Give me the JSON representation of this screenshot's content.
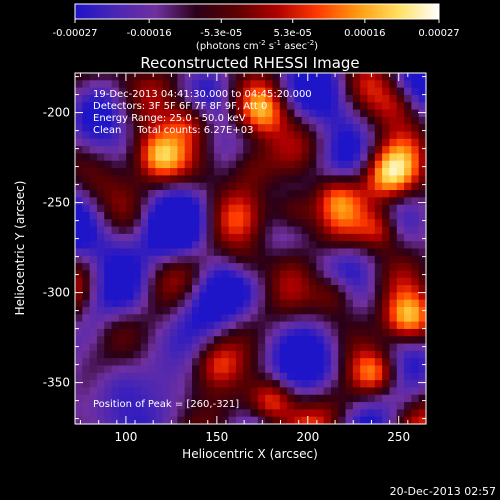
{
  "colorbar": {
    "tick_labels": [
      "-0.00027",
      "-0.00016",
      "-5.3e-05",
      "5.3e-05",
      "0.00016",
      "0.00027"
    ],
    "tick_values": [
      -0.00027,
      -0.00016,
      -5.3e-05,
      5.3e-05,
      0.00016,
      0.00027
    ],
    "range": [
      -0.00027,
      0.00027
    ],
    "unit_label_parts": [
      "(photons cm",
      "-2",
      " s",
      "-1",
      " asec",
      "-2",
      ")"
    ],
    "colors": [
      "#1e14c8",
      "#4a26b4",
      "#7030a0",
      "#2a0018",
      "#5c0000",
      "#b00000",
      "#ff3a00",
      "#ff9a10",
      "#ffe060",
      "#ffffff"
    ]
  },
  "chart_data": {
    "type": "heatmap",
    "title": "Reconstructed RHESSI Image",
    "xlabel": "Heliocentric X (arcsec)",
    "ylabel": "Heliocentric Y (arcsec)",
    "xlim": [
      72,
      265
    ],
    "ylim": [
      -373,
      -178
    ],
    "xticks": [
      100,
      150,
      200,
      250
    ],
    "yticks": [
      -200,
      -250,
      -300,
      -350
    ],
    "xtick_labels": [
      "100",
      "150",
      "200",
      "250"
    ],
    "ytick_labels": [
      "-200",
      "-250",
      "-300",
      "-350"
    ],
    "peak_position": [
      260,
      -321
    ],
    "info_lines": [
      "19-Dec-2013 04:41:30.000 to 04:45:20.000",
      "Detectors: 3F 5F 6F 7F 8F 9F, Att 0",
      "Energy Range: 25.0 - 50.0 keV",
      "Clean     Total counts: 6.27E+03"
    ],
    "annotation": "Position of Peak = [260,-321]",
    "bright_sources": [
      {
        "x": 118,
        "y": -224,
        "intensity": 0.9,
        "sigma": 10
      },
      {
        "x": 135,
        "y": -205,
        "intensity": 0.7,
        "sigma": 9
      },
      {
        "x": 168,
        "y": -230,
        "intensity": 0.6,
        "sigma": 10
      },
      {
        "x": 192,
        "y": -255,
        "intensity": 0.75,
        "sigma": 9
      },
      {
        "x": 215,
        "y": -245,
        "intensity": 0.55,
        "sigma": 9
      },
      {
        "x": 245,
        "y": -235,
        "intensity": 1.0,
        "sigma": 11
      },
      {
        "x": 240,
        "y": -265,
        "intensity": 0.6,
        "sigma": 8
      },
      {
        "x": 255,
        "y": -315,
        "intensity": 1.0,
        "sigma": 10
      },
      {
        "x": 237,
        "y": -345,
        "intensity": 0.7,
        "sigma": 9
      },
      {
        "x": 180,
        "y": -360,
        "intensity": 0.85,
        "sigma": 9
      },
      {
        "x": 215,
        "y": -300,
        "intensity": 0.65,
        "sigma": 9
      },
      {
        "x": 150,
        "y": -340,
        "intensity": 0.45,
        "sigma": 9
      },
      {
        "x": 95,
        "y": -318,
        "intensity": 0.45,
        "sigma": 10
      },
      {
        "x": 165,
        "y": -285,
        "intensity": 0.5,
        "sigma": 9
      },
      {
        "x": 175,
        "y": -200,
        "intensity": 0.5,
        "sigma": 9
      },
      {
        "x": 250,
        "y": -195,
        "intensity": 0.5,
        "sigma": 9
      }
    ],
    "dark_regions": [
      {
        "x": 90,
        "y": -275,
        "intensity": -0.55,
        "sigma": 14
      },
      {
        "x": 95,
        "y": -350,
        "intensity": -0.6,
        "sigma": 12
      },
      {
        "x": 140,
        "y": -305,
        "intensity": -0.55,
        "sigma": 14
      },
      {
        "x": 205,
        "y": -330,
        "intensity": -0.5,
        "sigma": 14
      },
      {
        "x": 220,
        "y": -200,
        "intensity": -0.35,
        "sigma": 12
      },
      {
        "x": 125,
        "y": -265,
        "intensity": -0.4,
        "sigma": 12
      }
    ]
  },
  "timestamp": "20-Dec-2013 02:57"
}
